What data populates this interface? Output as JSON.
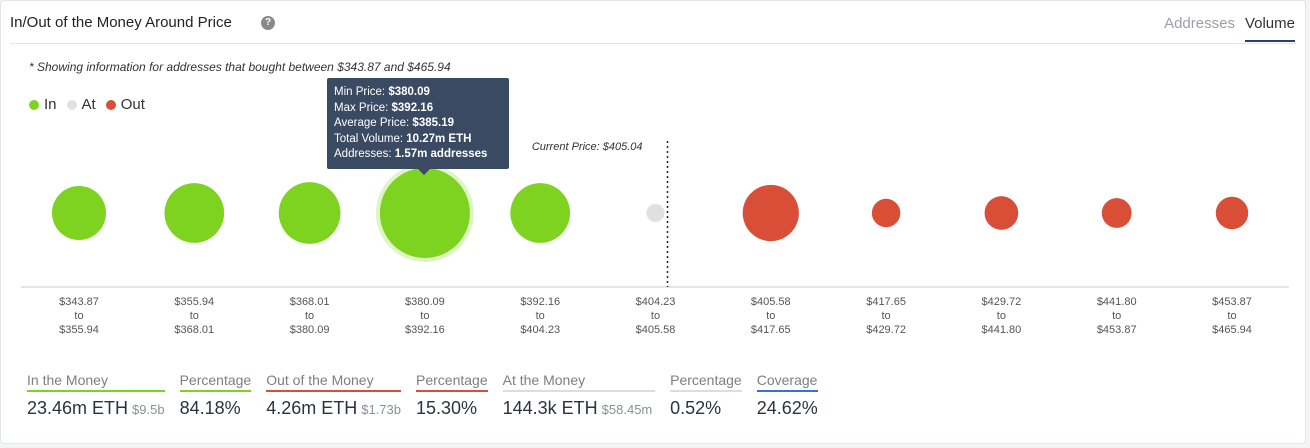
{
  "header": {
    "title": "In/Out of the Money Around Price",
    "help_icon": "question-circle-icon",
    "tabs": [
      {
        "label": "Addresses",
        "active": false
      },
      {
        "label": "Volume",
        "active": true
      }
    ]
  },
  "note": "* Showing information for addresses that bought between $343.87 and $465.94",
  "legend": [
    {
      "label": "In",
      "color": "#7ed321"
    },
    {
      "label": "At",
      "color": "#e0e0e0"
    },
    {
      "label": "Out",
      "color": "#d94e37"
    }
  ],
  "chart_data": {
    "type": "bubble",
    "current_price_label": "Current Price: $405.04",
    "current_price": 405.04,
    "categories": [
      {
        "from": "$343.87",
        "to": "$355.94",
        "status": "in",
        "relative_volume": 0.36
      },
      {
        "from": "$355.94",
        "to": "$368.01",
        "status": "in",
        "relative_volume": 0.44
      },
      {
        "from": "$368.01",
        "to": "$380.09",
        "status": "in",
        "relative_volume": 0.47
      },
      {
        "from": "$380.09",
        "to": "$392.16",
        "status": "in",
        "relative_volume": 1.0
      },
      {
        "from": "$392.16",
        "to": "$404.23",
        "status": "in",
        "relative_volume": 0.44
      },
      {
        "from": "$404.23",
        "to": "$405.58",
        "status": "at",
        "relative_volume": 0.04
      },
      {
        "from": "$405.58",
        "to": "$417.65",
        "status": "out",
        "relative_volume": 0.39
      },
      {
        "from": "$417.65",
        "to": "$429.72",
        "status": "out",
        "relative_volume": 0.1
      },
      {
        "from": "$429.72",
        "to": "$441.80",
        "status": "out",
        "relative_volume": 0.14
      },
      {
        "from": "$441.80",
        "to": "$453.87",
        "status": "out",
        "relative_volume": 0.11
      },
      {
        "from": "$453.87",
        "to": "$465.94",
        "status": "out",
        "relative_volume": 0.13
      }
    ],
    "to_word": "to",
    "highlighted_index": 3
  },
  "tooltip": {
    "rows": [
      {
        "label": "Min Price: ",
        "value": "$380.09"
      },
      {
        "label": "Max Price: ",
        "value": "$392.16"
      },
      {
        "label": "Average Price: ",
        "value": "$385.19"
      },
      {
        "label": "Total Volume: ",
        "value": "10.27m ETH"
      },
      {
        "label": "Addresses: ",
        "value": "1.57m addresses"
      }
    ]
  },
  "stats": [
    {
      "label": "In the Money",
      "value": "23.46m ETH",
      "sub": "$9.5b",
      "color": "#7ed321"
    },
    {
      "label": "Percentage",
      "value": "84.18%",
      "sub": "",
      "color": "#7ed321"
    },
    {
      "label": "Out of the Money",
      "value": "4.26m ETH",
      "sub": "$1.73b",
      "color": "#d94e37"
    },
    {
      "label": "Percentage",
      "value": "15.30%",
      "sub": "",
      "color": "#d94e37"
    },
    {
      "label": "At the Money",
      "value": "144.3k ETH",
      "sub": "$58.45m",
      "color": "#dddddd"
    },
    {
      "label": "Percentage",
      "value": "0.52%",
      "sub": "",
      "color": "#dddddd"
    },
    {
      "label": "Coverage",
      "value": "24.62%",
      "sub": "",
      "color": "#3a6fd8"
    }
  ]
}
